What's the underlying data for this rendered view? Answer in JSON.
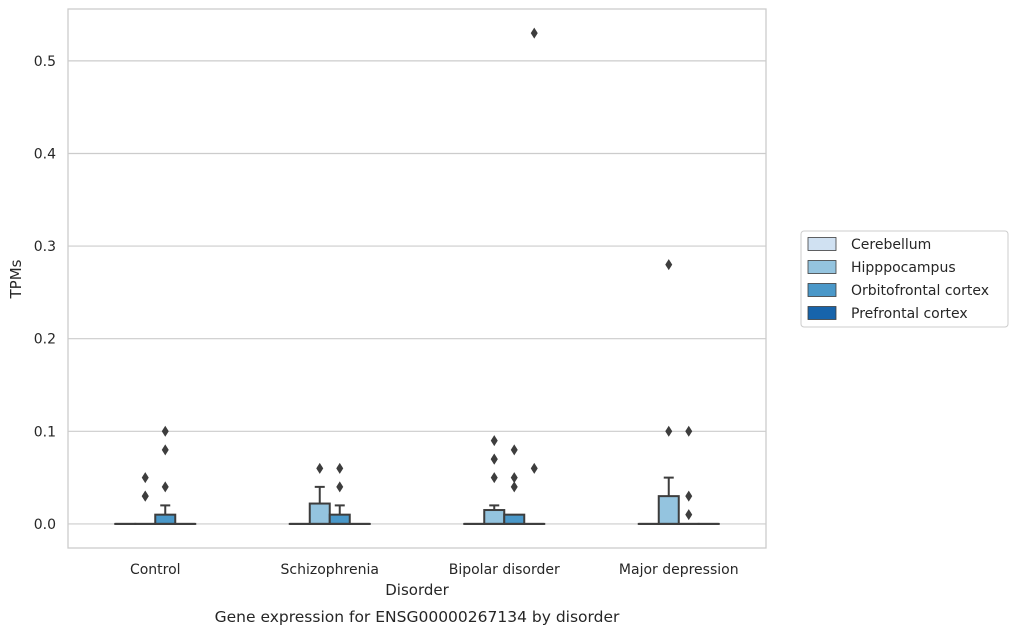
{
  "chart_data": {
    "type": "box",
    "title": "",
    "caption": "Gene expression for ENSG00000267134 by disorder",
    "xlabel": "Disorder",
    "ylabel": "TPMs",
    "categories": [
      "Control",
      "Schizophrenia",
      "Bipolar disorder",
      "Major depression"
    ],
    "ylim": [
      -0.026,
      0.556
    ],
    "yticks": [
      0.0,
      0.1,
      0.2,
      0.3,
      0.4,
      0.5
    ],
    "ytick_labels": [
      "0.0",
      "0.1",
      "0.2",
      "0.3",
      "0.4",
      "0.5"
    ],
    "grid": "horizontal",
    "legend_position": "right",
    "series": [
      {
        "name": "Cerebellum",
        "color": "#d0e1f2",
        "boxes": [
          {
            "category": "Control",
            "q1": 0,
            "median": 0,
            "q3": 0,
            "whisker_low": 0,
            "whisker_high": 0,
            "outliers": []
          },
          {
            "category": "Schizophrenia",
            "q1": 0,
            "median": 0,
            "q3": 0,
            "whisker_low": 0,
            "whisker_high": 0,
            "outliers": []
          },
          {
            "category": "Bipolar disorder",
            "q1": 0,
            "median": 0,
            "q3": 0,
            "whisker_low": 0,
            "whisker_high": 0,
            "outliers": []
          },
          {
            "category": "Major depression",
            "q1": 0,
            "median": 0,
            "q3": 0,
            "whisker_low": 0,
            "whisker_high": 0,
            "outliers": []
          }
        ]
      },
      {
        "name": "Hipppocampus",
        "color": "#94c4df",
        "boxes": [
          {
            "category": "Control",
            "q1": 0,
            "median": 0,
            "q3": 0,
            "whisker_low": 0,
            "whisker_high": 0,
            "outliers": [
              0.03,
              0.05,
              0.03
            ]
          },
          {
            "category": "Schizophrenia",
            "q1": 0,
            "median": 0,
            "q3": 0.022,
            "whisker_low": 0,
            "whisker_high": 0.04,
            "outliers": [
              0.06
            ]
          },
          {
            "category": "Bipolar disorder",
            "q1": 0,
            "median": 0,
            "q3": 0.015,
            "whisker_low": 0,
            "whisker_high": 0.02,
            "outliers": [
              0.09,
              0.07,
              0.07,
              0.05
            ]
          },
          {
            "category": "Major depression",
            "q1": 0,
            "median": 0,
            "q3": 0.03,
            "whisker_low": 0,
            "whisker_high": 0.05,
            "outliers": [
              0.28,
              0.1
            ]
          }
        ]
      },
      {
        "name": "Orbitofrontal cortex",
        "color": "#4a98c9",
        "boxes": [
          {
            "category": "Control",
            "q1": 0,
            "median": 0,
            "q3": 0.01,
            "whisker_low": 0,
            "whisker_high": 0.02,
            "outliers": [
              0.1,
              0.08,
              0.04
            ]
          },
          {
            "category": "Schizophrenia",
            "q1": 0,
            "median": 0,
            "q3": 0.01,
            "whisker_low": 0,
            "whisker_high": 0.02,
            "outliers": [
              0.06,
              0.04
            ]
          },
          {
            "category": "Bipolar disorder",
            "q1": 0,
            "median": 0,
            "q3": 0.01,
            "whisker_low": 0,
            "whisker_high": 0.01,
            "outliers": [
              0.08,
              0.05,
              0.04
            ]
          },
          {
            "category": "Major depression",
            "q1": 0,
            "median": 0,
            "q3": 0,
            "whisker_low": 0,
            "whisker_high": 0,
            "outliers": [
              0.1,
              0.03,
              0.01
            ]
          }
        ]
      },
      {
        "name": "Prefrontal cortex",
        "color": "#1764ab",
        "boxes": [
          {
            "category": "Control",
            "q1": 0,
            "median": 0,
            "q3": 0,
            "whisker_low": 0,
            "whisker_high": 0,
            "outliers": []
          },
          {
            "category": "Schizophrenia",
            "q1": 0,
            "median": 0,
            "q3": 0,
            "whisker_low": 0,
            "whisker_high": 0,
            "outliers": []
          },
          {
            "category": "Bipolar disorder",
            "q1": 0,
            "median": 0,
            "q3": 0,
            "whisker_low": 0,
            "whisker_high": 0,
            "outliers": [
              0.53,
              0.06
            ]
          },
          {
            "category": "Major depression",
            "q1": 0,
            "median": 0,
            "q3": 0,
            "whisker_low": 0,
            "whisker_high": 0,
            "outliers": []
          }
        ]
      }
    ]
  }
}
